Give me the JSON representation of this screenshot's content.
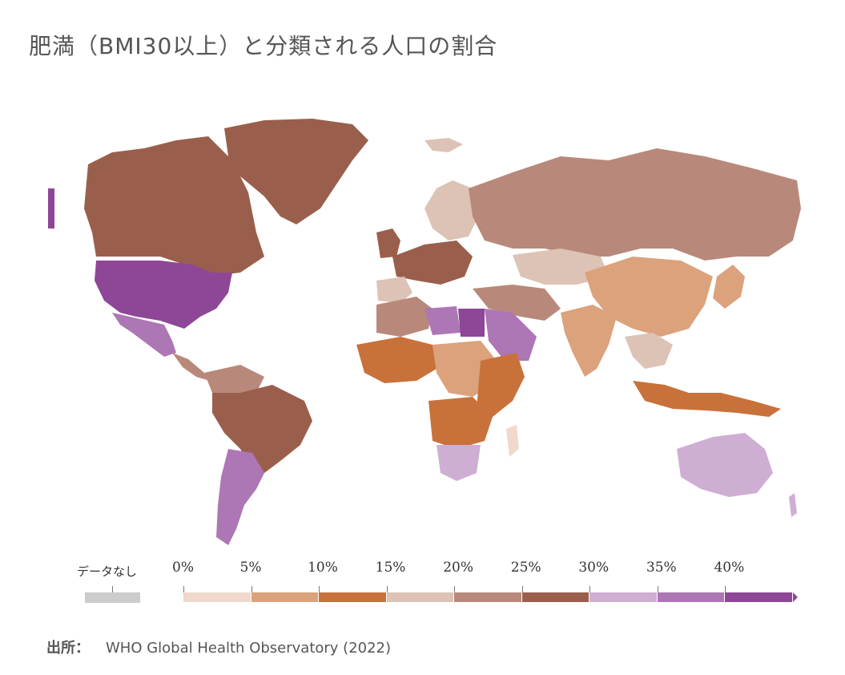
{
  "title": "肥満（BMI30以上）と分類される人口の割合",
  "legend": {
    "nodata_label": "データなし",
    "nodata_color": "#cccccc",
    "ticks": [
      "0%",
      "5%",
      "10%",
      "15%",
      "20%",
      "25%",
      "30%",
      "35%",
      "40%"
    ],
    "bins": [
      {
        "range": "0-5%",
        "color": "#f0d9cc"
      },
      {
        "range": "5-10%",
        "color": "#dba27c"
      },
      {
        "range": "10-15%",
        "color": "#c9713b"
      },
      {
        "range": "15-20%",
        "color": "#dcc3b5"
      },
      {
        "range": "20-25%",
        "color": "#b8897a"
      },
      {
        "range": "25-30%",
        "color": "#9a5f4c"
      },
      {
        "range": "30-35%",
        "color": "#cfaed4"
      },
      {
        "range": "35-40%",
        "color": "#ad76b5"
      },
      {
        "range": "40%+",
        "color": "#8e4796"
      }
    ]
  },
  "map_regions": [
    {
      "name": "Canada",
      "bin": "25-30%"
    },
    {
      "name": "Greenland",
      "bin": "25-30%"
    },
    {
      "name": "United States",
      "bin": "40%+"
    },
    {
      "name": "Mexico",
      "bin": "35-40%"
    },
    {
      "name": "Central America",
      "bin": "20-25%"
    },
    {
      "name": "Brazil",
      "bin": "25-30%"
    },
    {
      "name": "Argentina",
      "bin": "35-40%"
    },
    {
      "name": "Russia",
      "bin": "20-25%"
    },
    {
      "name": "Northern Europe",
      "bin": "15-20%"
    },
    {
      "name": "Western Europe",
      "bin": "25-30%"
    },
    {
      "name": "North Africa",
      "bin": "20-25%"
    },
    {
      "name": "Egypt",
      "bin": "40%+"
    },
    {
      "name": "Libya",
      "bin": "35-40%"
    },
    {
      "name": "Arabian Peninsula",
      "bin": "35-40%"
    },
    {
      "name": "West Africa",
      "bin": "10-15%"
    },
    {
      "name": "Central Africa",
      "bin": "5-10%"
    },
    {
      "name": "Southern Africa",
      "bin": "30-35%"
    },
    {
      "name": "East Africa",
      "bin": "10-15%"
    },
    {
      "name": "China",
      "bin": "5-10%"
    },
    {
      "name": "India",
      "bin": "5-10%"
    },
    {
      "name": "Central Asia",
      "bin": "15-20%"
    },
    {
      "name": "Southeast Asia",
      "bin": "15-20%"
    },
    {
      "name": "Indonesia",
      "bin": "10-15%"
    },
    {
      "name": "Australia",
      "bin": "30-35%"
    },
    {
      "name": "Japan",
      "bin": "5-10%"
    }
  ],
  "source": {
    "label": "出所：",
    "value": "WHO Global Health Observatory (2022)"
  }
}
